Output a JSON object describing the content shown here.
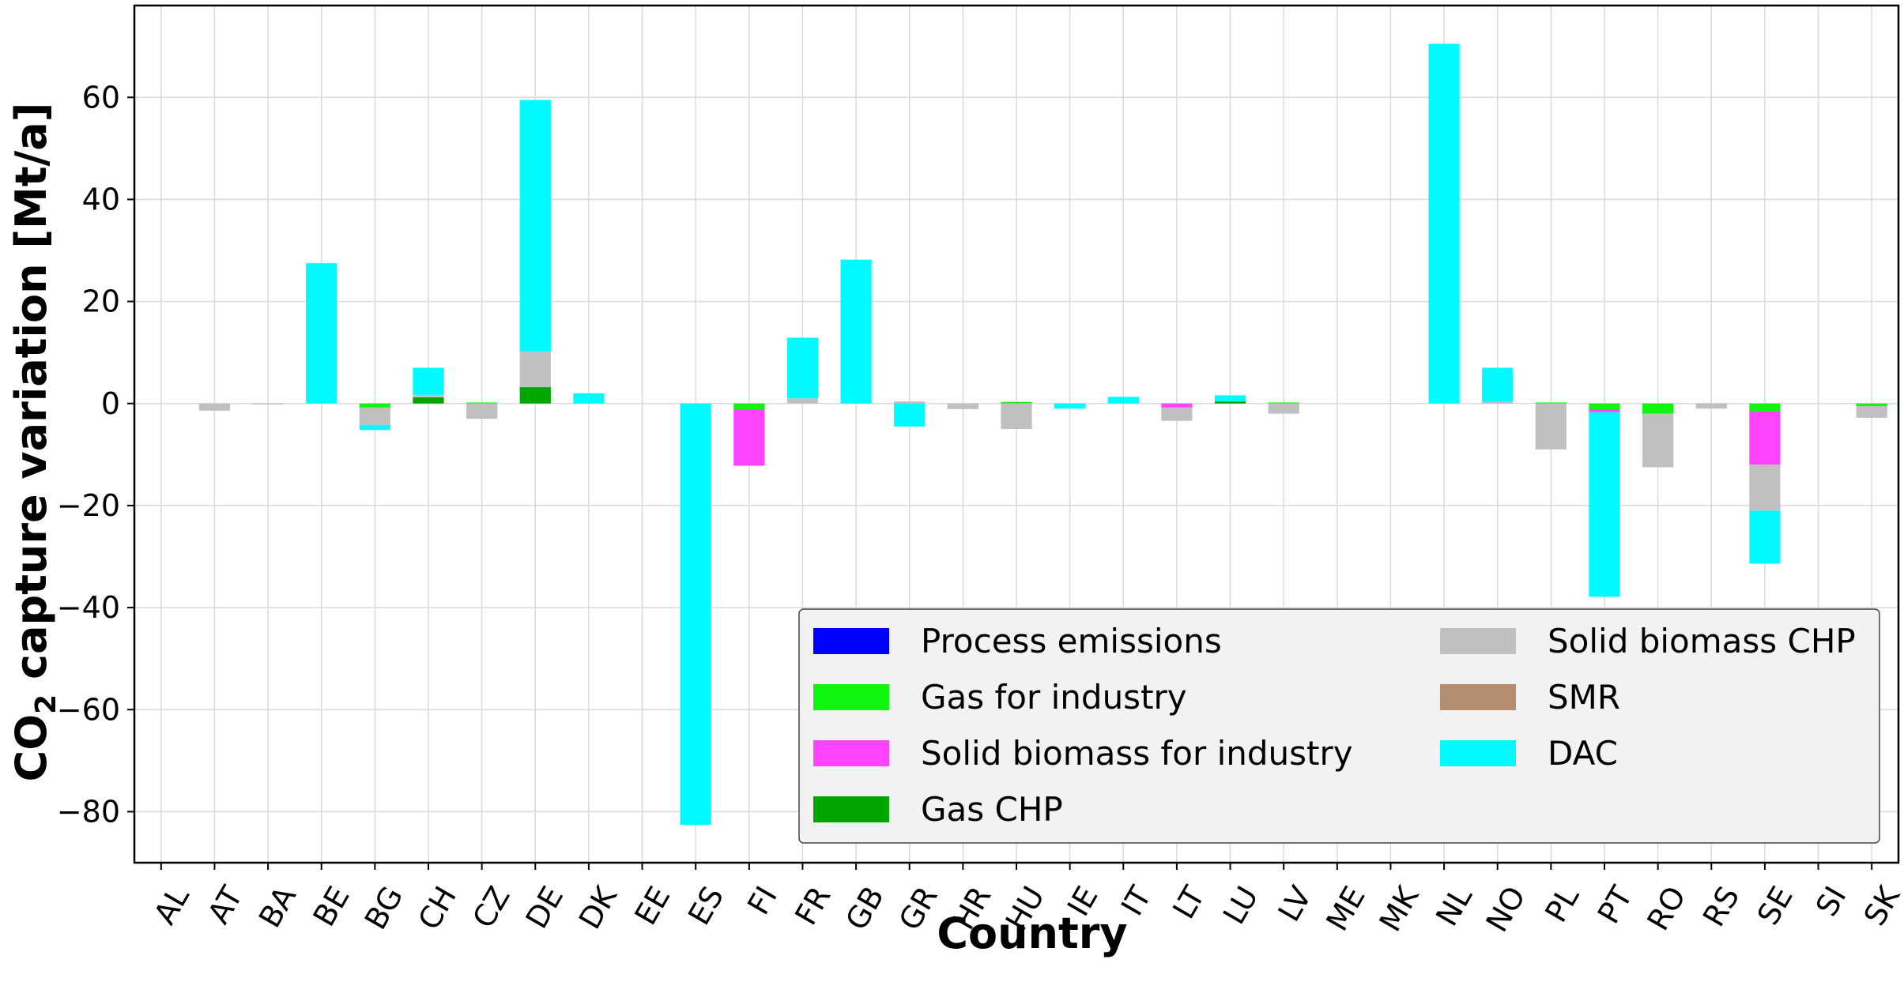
{
  "chart_data": {
    "type": "bar",
    "stacked": true,
    "title": "",
    "xlabel": "Country",
    "ylabel_main": "CO",
    "ylabel_sub": "2",
    "ylabel_rest": " capture variation [Mt/a]",
    "ylim": [
      -90,
      78
    ],
    "yticks": [
      -80,
      -60,
      -40,
      -20,
      0,
      20,
      40,
      60
    ],
    "ytick_labels": [
      "−80",
      "−60",
      "−40",
      "−20",
      "0",
      "20",
      "40",
      "60"
    ],
    "grid": true,
    "legend_position": "lower-right",
    "categories": [
      "AL",
      "AT",
      "BA",
      "BE",
      "BG",
      "CH",
      "CZ",
      "DE",
      "DK",
      "EE",
      "ES",
      "FI",
      "FR",
      "GB",
      "GR",
      "HR",
      "HU",
      "IE",
      "IT",
      "LT",
      "LU",
      "LV",
      "ME",
      "MK",
      "NL",
      "NO",
      "PL",
      "PT",
      "RO",
      "RS",
      "SE",
      "SI",
      "SK"
    ],
    "series": [
      {
        "name": "Process emissions",
        "color": "#0000ff",
        "values": [
          0,
          0,
          0,
          0,
          0,
          0,
          0,
          0,
          0,
          0,
          0,
          0,
          0,
          0,
          0,
          0,
          0,
          0,
          0,
          0,
          0,
          0,
          0,
          0,
          0,
          0,
          0,
          0,
          0,
          0,
          0,
          0,
          0
        ]
      },
      {
        "name": "Gas for industry",
        "color": "#10f510",
        "values": [
          0,
          0,
          0,
          0,
          -0.8,
          0,
          0.2,
          0,
          0,
          0,
          0,
          -1.2,
          0,
          0,
          0,
          0,
          0.3,
          0,
          0,
          0,
          0,
          0.2,
          0,
          0,
          0,
          0,
          0.2,
          -1.2,
          -2,
          0,
          -1.5,
          0,
          -0.5
        ]
      },
      {
        "name": "Solid biomass for industry",
        "color": "#ff44ff",
        "values": [
          0,
          0,
          0,
          0,
          0,
          0,
          0,
          0,
          0,
          0,
          0,
          -11,
          0,
          0,
          0,
          0,
          0,
          0,
          0,
          -0.8,
          0,
          0,
          0,
          0,
          0,
          0,
          0,
          -0.5,
          0,
          0,
          -10.5,
          0,
          0
        ]
      },
      {
        "name": "Gas CHP",
        "color": "#00a500",
        "values": [
          0,
          0,
          0,
          0,
          0,
          1.2,
          0,
          3.2,
          0,
          0,
          0,
          0,
          0,
          0,
          0,
          0,
          0,
          0,
          0,
          0,
          0.4,
          0,
          0,
          0,
          0,
          0,
          0,
          0,
          0,
          0,
          0,
          0,
          0
        ]
      },
      {
        "name": "Solid biomass CHP",
        "color": "#c0c0c0",
        "values": [
          0,
          -1.4,
          -0.2,
          0,
          -3.4,
          0.5,
          -3,
          7,
          0,
          0,
          0,
          0,
          1,
          0,
          0.4,
          -1.1,
          -5,
          0,
          0,
          -2.6,
          0,
          -2,
          0,
          0,
          0,
          0.3,
          -9,
          0,
          -10.5,
          -1,
          -9,
          0,
          -2.3
        ]
      },
      {
        "name": "SMR",
        "color": "#b48c6e",
        "values": [
          0,
          0,
          0,
          0,
          0,
          0,
          0,
          0,
          0,
          0,
          0,
          0,
          0,
          0,
          0,
          0,
          0,
          0,
          0,
          0,
          0,
          0,
          0,
          0,
          0,
          0,
          0,
          0,
          0,
          0,
          0,
          0,
          0
        ]
      },
      {
        "name": "DAC",
        "color": "#00fbff",
        "values": [
          0,
          0,
          0,
          27.5,
          -1,
          5.3,
          0,
          49.3,
          2,
          0,
          -82.6,
          0,
          11.9,
          28.2,
          -4.5,
          0,
          0,
          -1,
          1.3,
          0,
          1.2,
          0,
          0,
          0,
          70.5,
          6.7,
          0,
          -36.2,
          0,
          0,
          -10.4,
          0,
          0
        ]
      }
    ],
    "legend_columns": [
      [
        "Process emissions",
        "Gas for industry",
        "Solid biomass for industry",
        "Gas CHP"
      ],
      [
        "Solid biomass CHP",
        "SMR",
        "DAC"
      ]
    ]
  }
}
